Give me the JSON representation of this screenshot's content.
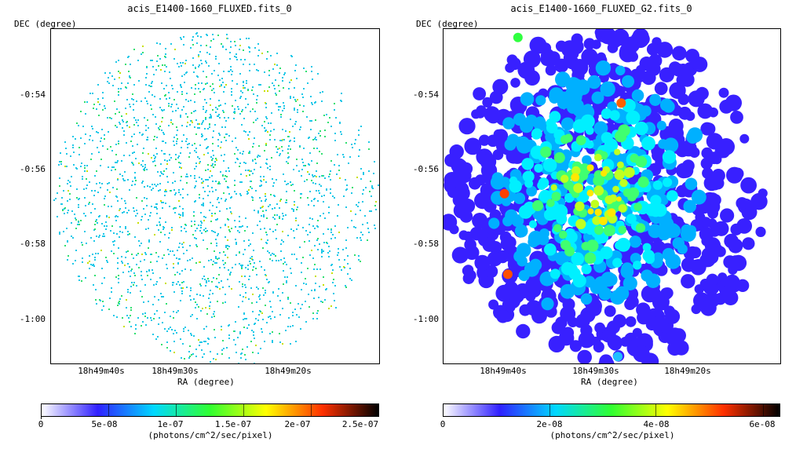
{
  "panels": [
    {
      "title": "acis_E1400-1660_FLUXED.fits_0",
      "xlabel": "RA (degree)",
      "ylabel": "DEC (degree)",
      "yticks": [
        "-0:54",
        "-0:56",
        "-0:58",
        "-1:00"
      ],
      "xticks": [
        "18h49m40s",
        "18h49m30s",
        "18h49m20s"
      ],
      "colorbar": {
        "ticks": [
          "0",
          "5e-08",
          "1e-07",
          "1.5e-07",
          "2e-07",
          "2.5e-07"
        ],
        "unit": "(photons/cm^2/sec/pixel)"
      },
      "style": "sparse"
    },
    {
      "title": "acis_E1400-1660_FLUXED_G2.fits_0",
      "xlabel": "RA (degree)",
      "ylabel": "DEC (degree)",
      "yticks": [
        "-0:54",
        "-0:56",
        "-0:58",
        "-1:00"
      ],
      "xticks": [
        "18h49m40s",
        "18h49m30s",
        "18h49m20s"
      ],
      "colorbar": {
        "ticks": [
          "0",
          "2e-08",
          "4e-08",
          "6e-08"
        ],
        "unit": "(photons/cm^2/sec/pixel)"
      },
      "style": "smoothed"
    }
  ],
  "colors": {
    "colormap": [
      "#ffffff",
      "#3020ff",
      "#00d8ff",
      "#30ff30",
      "#ffff00",
      "#ff3000",
      "#000000"
    ]
  }
}
